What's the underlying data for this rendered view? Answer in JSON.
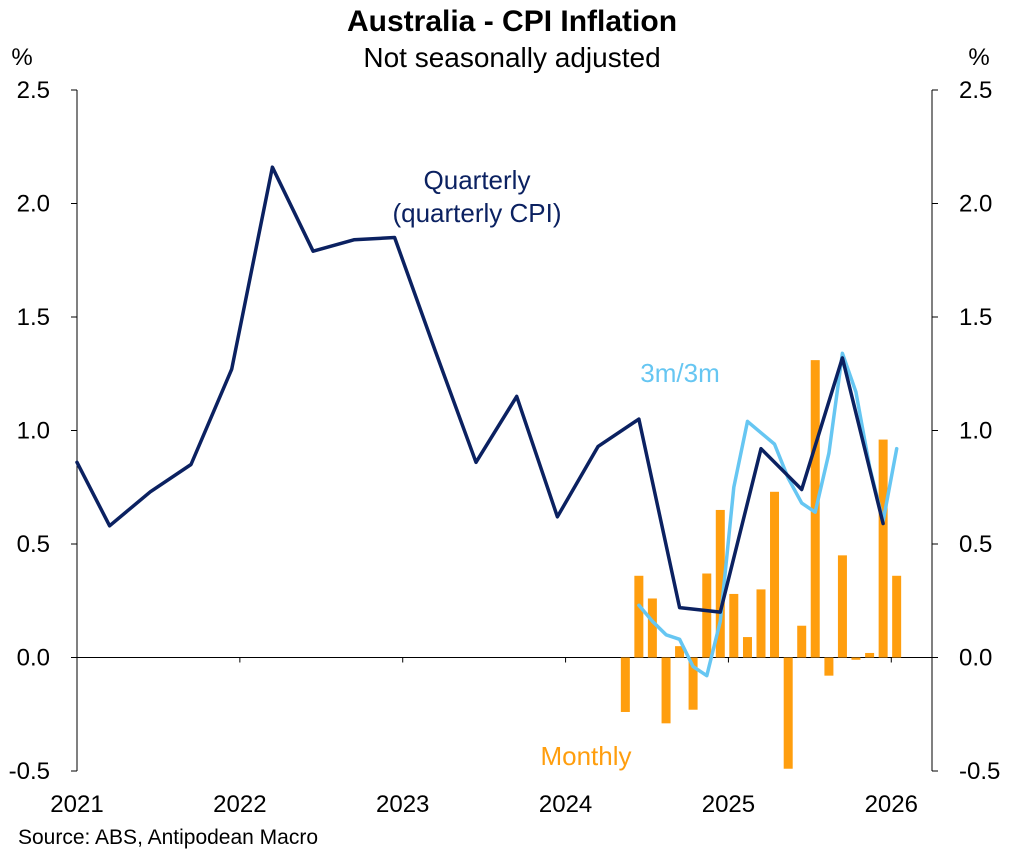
{
  "chart_data": {
    "type": "line+bar",
    "title": "Australia - CPI Inflation",
    "subtitle": "Not seasonally adjusted",
    "ylabel_left": "%",
    "ylabel_right": "%",
    "ylim": [
      -0.5,
      2.5
    ],
    "yticks": [
      2.5,
      2.0,
      1.5,
      1.0,
      0.5,
      0.0,
      -0.5
    ],
    "ytick_labels": [
      "2.5",
      "2.0",
      "1.5",
      "1.0",
      "0.5",
      "0.0",
      "-0.5"
    ],
    "xlim": [
      2021.0,
      2026.25
    ],
    "xticks": [
      2021,
      2022,
      2023,
      2024,
      2025,
      2026
    ],
    "xtick_labels": [
      "2021",
      "2022",
      "2023",
      "2024",
      "2025",
      "2026"
    ],
    "source": "Source: ABS, Antipodean Macro",
    "series": [
      {
        "name": "Quarterly",
        "label": "Quarterly\n(quarterly CPI)",
        "kind": "line",
        "color": "#0b2161",
        "x": [
          2021.0,
          2021.2,
          2021.45,
          2021.7,
          2021.95,
          2022.2,
          2022.45,
          2022.7,
          2022.95,
          2023.2,
          2023.45,
          2023.7,
          2023.95,
          2024.2,
          2024.45,
          2024.7,
          2024.95,
          2025.2,
          2025.45,
          2025.7,
          2025.95
        ],
        "values": [
          0.86,
          0.58,
          0.73,
          0.85,
          1.27,
          2.16,
          1.79,
          1.84,
          1.85,
          1.35,
          0.86,
          1.15,
          0.62,
          0.93,
          1.05,
          0.22,
          0.2,
          0.92,
          0.74,
          1.32,
          0.59
        ]
      },
      {
        "name": "3m/3m",
        "label": "3m/3m",
        "kind": "line",
        "color": "#66c6f2",
        "x": [
          2024.45,
          2024.533,
          2024.617,
          2024.7,
          2024.783,
          2024.867,
          2024.95,
          2025.033,
          2025.117,
          2025.2,
          2025.283,
          2025.367,
          2025.45,
          2025.533,
          2025.617,
          2025.7,
          2025.783,
          2025.867,
          2025.95,
          2026.033
        ],
        "values": [
          0.23,
          0.16,
          0.1,
          0.08,
          -0.04,
          -0.08,
          0.16,
          0.75,
          1.04,
          0.99,
          0.94,
          0.79,
          0.68,
          0.64,
          0.9,
          1.34,
          1.17,
          0.84,
          0.6,
          0.92
        ]
      },
      {
        "name": "Monthly",
        "label": "Monthly",
        "kind": "bar",
        "color": "#ff9e0e",
        "x": [
          2024.367,
          2024.45,
          2024.533,
          2024.617,
          2024.7,
          2024.783,
          2024.867,
          2024.95,
          2025.033,
          2025.117,
          2025.2,
          2025.283,
          2025.367,
          2025.45,
          2025.533,
          2025.617,
          2025.7,
          2025.783,
          2025.867,
          2025.95,
          2026.033
        ],
        "values": [
          -0.24,
          0.36,
          0.26,
          -0.29,
          0.05,
          -0.23,
          0.37,
          0.65,
          0.28,
          0.09,
          0.3,
          0.73,
          -0.49,
          0.14,
          1.31,
          -0.08,
          0.45,
          -0.01,
          0.02,
          0.96,
          0.36
        ]
      }
    ]
  }
}
